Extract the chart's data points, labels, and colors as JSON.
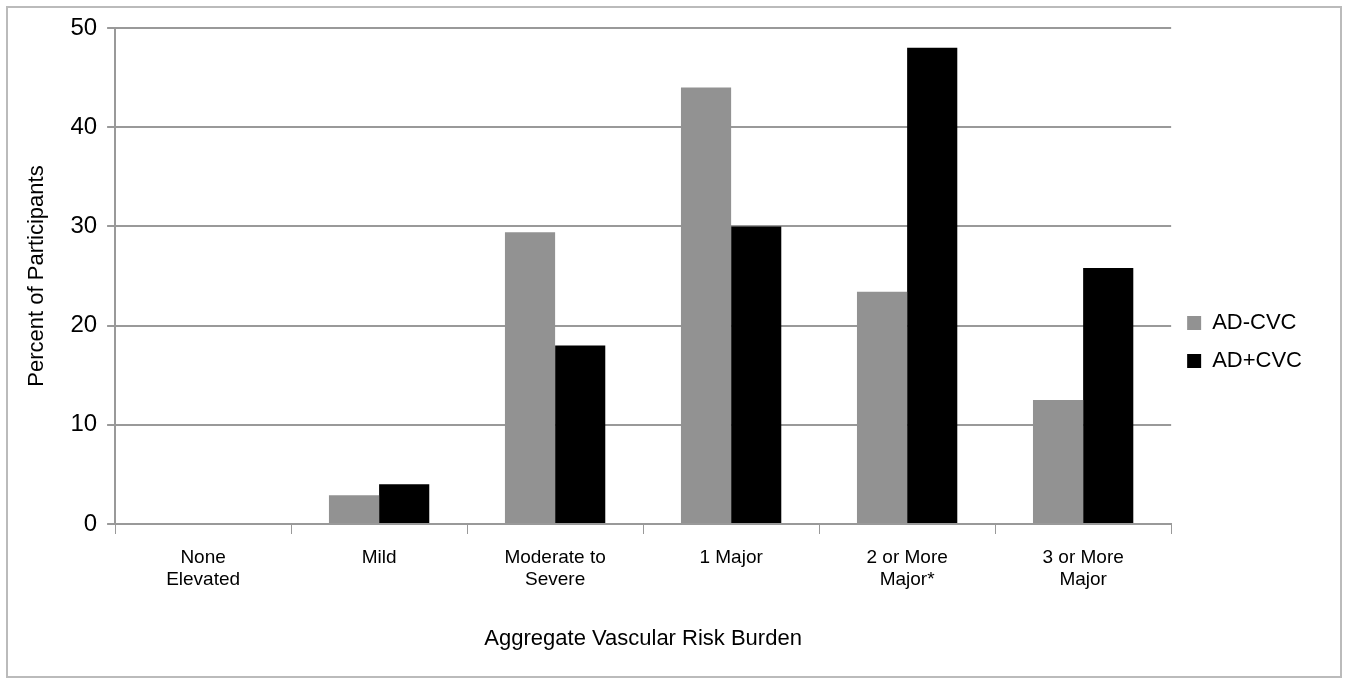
{
  "chart_data": {
    "type": "bar",
    "xlabel": "Aggregate Vascular Risk Burden",
    "ylabel": "Percent of Participants",
    "categories": [
      "None Elevated",
      "Mild",
      "Moderate to Severe",
      "1 Major",
      "2 or More Major*",
      "3 or More Major"
    ],
    "series": [
      {
        "name": "AD-CVC",
        "color": "#929292",
        "values": [
          0,
          2.9,
          29.4,
          44.0,
          23.4,
          12.5
        ]
      },
      {
        "name": "AD+CVC",
        "color": "#000000",
        "values": [
          0,
          4.0,
          18.0,
          30.0,
          48.0,
          25.8
        ]
      }
    ],
    "ylim": [
      0,
      50
    ],
    "yticks": [
      0,
      10,
      20,
      30,
      40,
      50
    ],
    "grid": "y",
    "legend": "right"
  }
}
